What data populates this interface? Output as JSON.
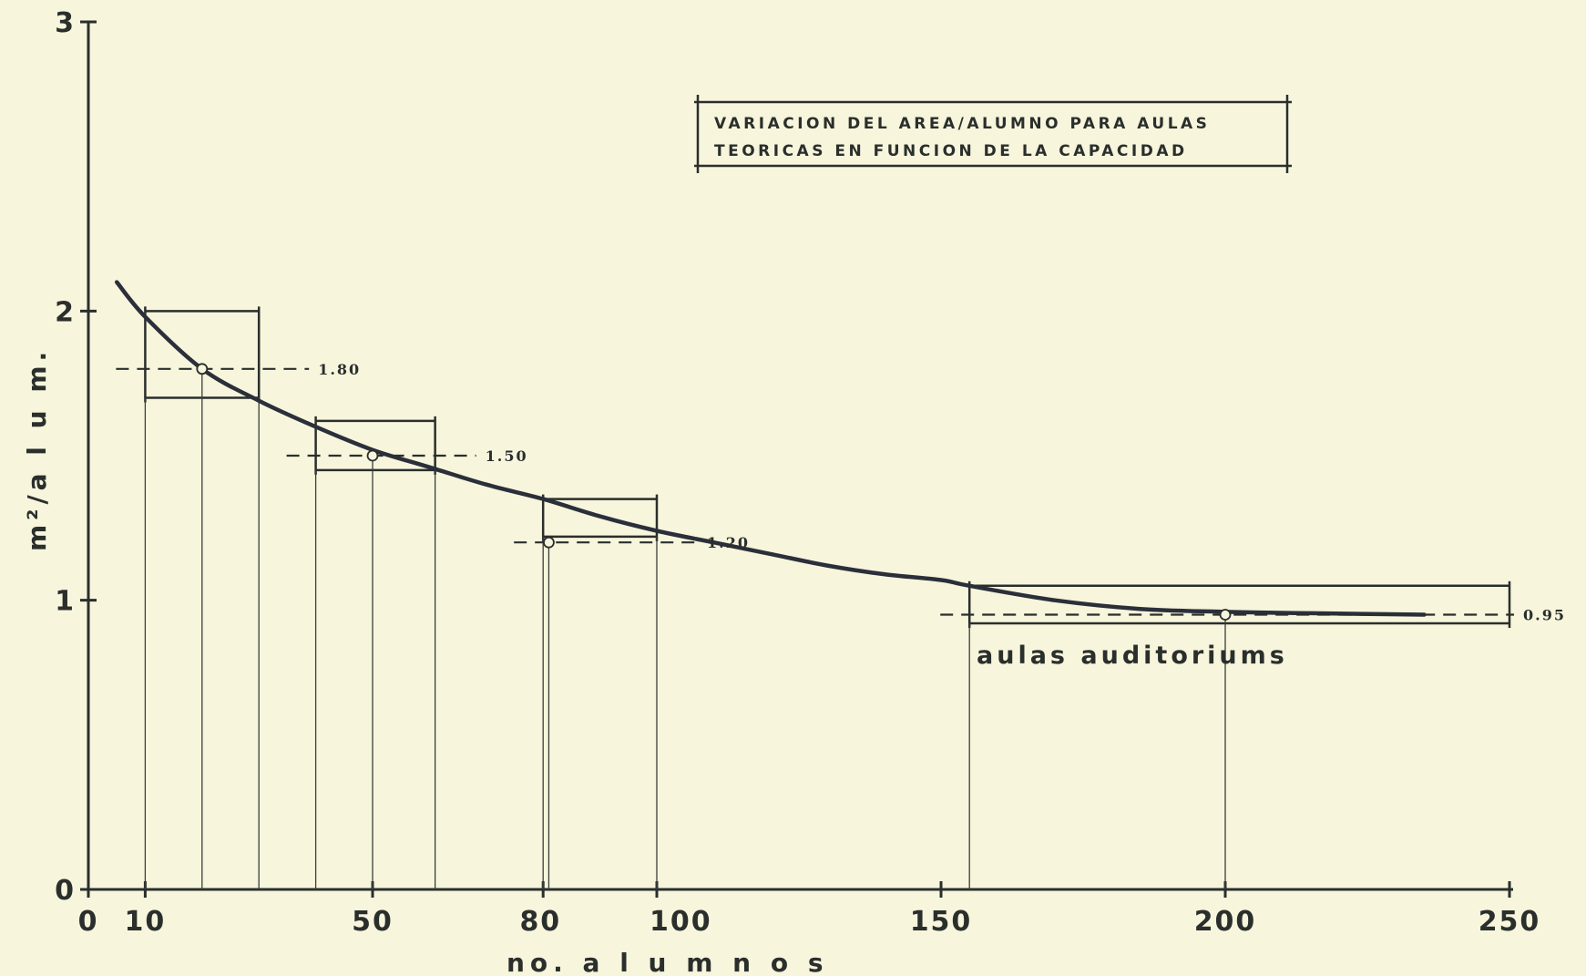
{
  "chart_data": {
    "type": "line",
    "title": [
      "VARIACION DEL AREA/ALUMNO PARA AULAS",
      "TEORICAS EN FUNCION DE LA CAPACIDAD"
    ],
    "xlabel": "no.  a l u m n o s",
    "ylabel": "m²/a l u m.",
    "xlim": [
      0,
      250
    ],
    "ylim": [
      0,
      3
    ],
    "x_ticks": [
      {
        "value": 0,
        "label": "0"
      },
      {
        "value": 10,
        "label": "10"
      },
      {
        "value": 50,
        "label": "50"
      },
      {
        "value": 80,
        "label": "80"
      },
      {
        "value": 100,
        "label": "100"
      },
      {
        "value": 150,
        "label": "150"
      },
      {
        "value": 200,
        "label": "200"
      },
      {
        "value": 250,
        "label": "250"
      }
    ],
    "y_ticks": [
      {
        "value": 0,
        "label": "0"
      },
      {
        "value": 1,
        "label": "1"
      },
      {
        "value": 2,
        "label": "2"
      },
      {
        "value": 3,
        "label": "3"
      }
    ],
    "grid": false,
    "series": [
      {
        "x": [
          5,
          10,
          20,
          30,
          40,
          50,
          60,
          70,
          80,
          90,
          100,
          110,
          120,
          130,
          140,
          150,
          155,
          170,
          185,
          200,
          215,
          235
        ],
        "y": [
          2.1,
          1.98,
          1.8,
          1.69,
          1.6,
          1.52,
          1.46,
          1.4,
          1.35,
          1.29,
          1.24,
          1.2,
          1.16,
          1.12,
          1.09,
          1.07,
          1.05,
          1.0,
          0.97,
          0.96,
          0.955,
          0.95
        ]
      }
    ],
    "reference_points": [
      {
        "x": 20,
        "y": 1.8,
        "label": "1.80"
      },
      {
        "x": 50,
        "y": 1.5,
        "label": "1.50"
      },
      {
        "x": 81,
        "y": 1.2,
        "label": "1.20"
      },
      {
        "x": 200,
        "y": 0.95,
        "label": "0.95"
      }
    ],
    "ranges": [
      {
        "x_from": 10,
        "x_to": 30,
        "y_from": 1.7,
        "y_to": 2.0
      },
      {
        "x_from": 40,
        "x_to": 61,
        "y_from": 1.45,
        "y_to": 1.62
      },
      {
        "x_from": 80,
        "x_to": 100,
        "y_from": 1.22,
        "y_to": 1.35
      },
      {
        "x_from": 155,
        "x_to": 250,
        "y_from": 0.92,
        "y_to": 1.05
      }
    ],
    "range_label": "aulas  auditoriums"
  }
}
